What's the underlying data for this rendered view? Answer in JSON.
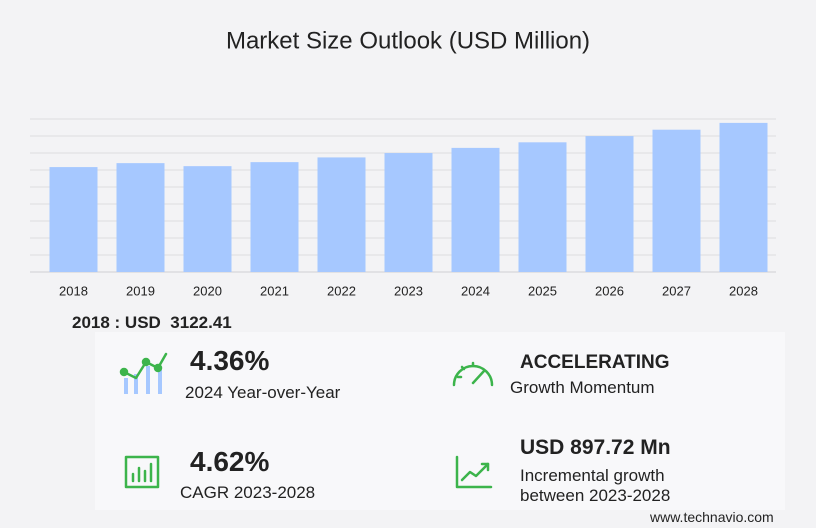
{
  "chart_data": {
    "type": "bar",
    "title": "Market Size Outlook (USD Million)",
    "categories": [
      "2018",
      "2019",
      "2020",
      "2021",
      "2022",
      "2023",
      "2024",
      "2025",
      "2026",
      "2027",
      "2028"
    ],
    "values": [
      3122.41,
      3240,
      3150,
      3270,
      3410,
      3540,
      3694,
      3860,
      4045,
      4235,
      4438
    ],
    "color": "#a6c8ff",
    "ylim": [
      0,
      5000
    ],
    "grid": true,
    "highlight_label": "2018 : USD"
  },
  "stats": [
    {
      "value": "4.36%",
      "label": "2024 Year-over-Year"
    },
    {
      "value": "ACCELERATING",
      "label": "Growth Momentum"
    },
    {
      "value": "4.62%",
      "label": "CAGR 2023-2028"
    },
    {
      "value": "USD 897.72 Mn",
      "label": "Incremental growth between 2023-2028"
    }
  ],
  "footer": "www.technavio.com"
}
